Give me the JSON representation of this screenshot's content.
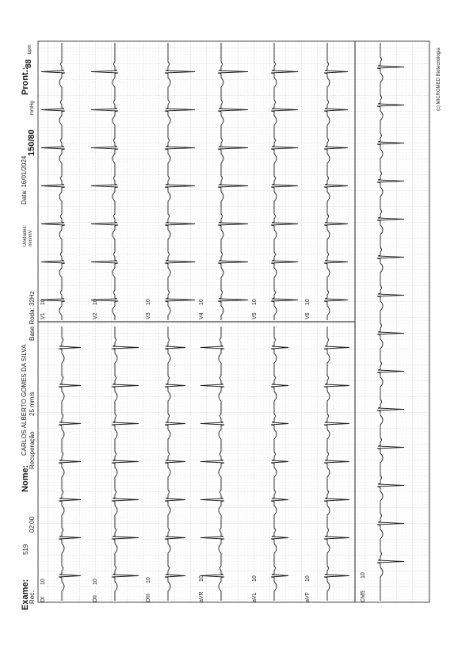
{
  "header": {
    "exame_label": "Exame:",
    "exame_value": "519",
    "rec_label": "Rec.",
    "time": "02:00",
    "nome_label": "Nome:",
    "nome_value": "CARLOS ALBERTO GOMES DA SILVA",
    "phase": "Recuperação",
    "speed": "25 mm/s",
    "filter": "Base Roda: 32Hz",
    "units": [
      "Unidades:",
      "mm/mV"
    ],
    "date": "Data: 16/01/2024",
    "bp": "150/80",
    "bp_unit": "mmHg",
    "pront_label": "Pront.:",
    "hr": "88",
    "hr_unit": "bpm"
  },
  "footer": {
    "brand": "(c) MICROMED Biotecnologia"
  },
  "leads": {
    "left_panel": [
      {
        "name": "DI",
        "gain": "10"
      },
      {
        "name": "DII",
        "gain": "10"
      },
      {
        "name": "DIII",
        "gain": "10"
      },
      {
        "name": "aVR",
        "gain": "10"
      },
      {
        "name": "aVL",
        "gain": "10"
      },
      {
        "name": "aVF",
        "gain": "10"
      }
    ],
    "right_panel": [
      {
        "name": "V1",
        "gain": "10"
      },
      {
        "name": "V2",
        "gain": "10"
      },
      {
        "name": "V3",
        "gain": "10"
      },
      {
        "name": "V4",
        "gain": "10"
      },
      {
        "name": "V5",
        "gain": "10"
      },
      {
        "name": "V6",
        "gain": "10"
      }
    ],
    "rhythm": {
      "name": "CM5",
      "gain": "10"
    }
  },
  "colors": {
    "grid_minor": "#cfcfcf",
    "grid_major": "#a9a9a9",
    "trace": "#222222"
  }
}
